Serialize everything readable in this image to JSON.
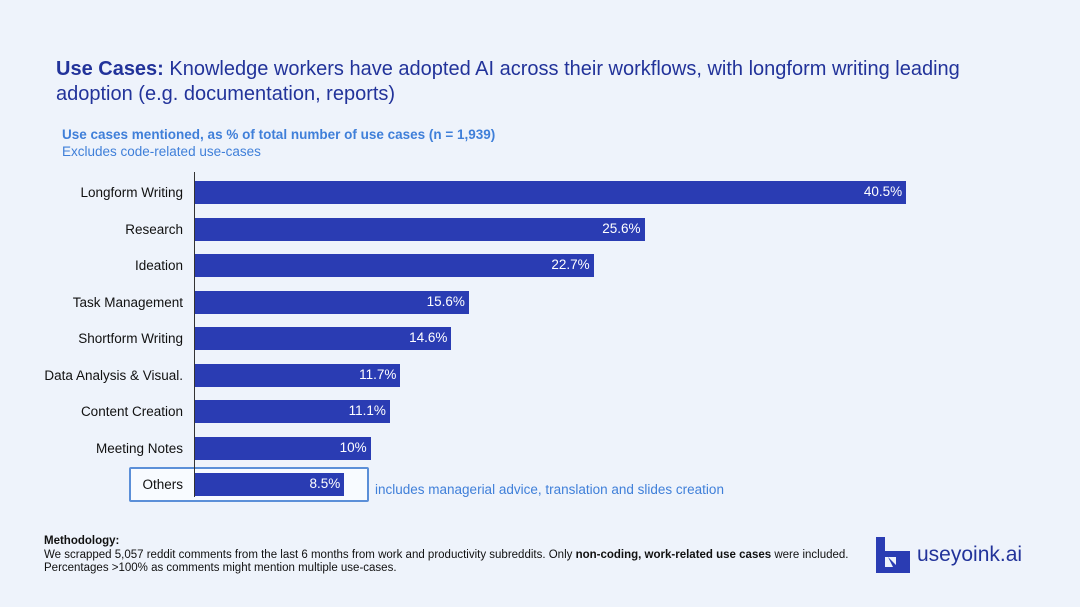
{
  "title": {
    "bold": "Use Cases:",
    "rest": " Knowledge workers have adopted AI across their workflows, with longform writing leading adoption (e.g. documentation, reports)"
  },
  "subtitle": "Use cases mentioned, as % of total number of use cases (n = 1,939)",
  "subtitle2": "Excludes code-related use-cases",
  "chart_data": {
    "type": "bar",
    "orientation": "horizontal",
    "categories": [
      "Longform Writing",
      "Research",
      "Ideation",
      "Task Management",
      "Shortform Writing",
      "Data Analysis & Visual.",
      "Content Creation",
      "Meeting Notes",
      "Others"
    ],
    "values": [
      40.5,
      25.6,
      22.7,
      15.6,
      14.6,
      11.7,
      11.1,
      10,
      8.5
    ],
    "labels": [
      "40.5%",
      "25.6%",
      "22.7%",
      "15.6%",
      "14.6%",
      "11.7%",
      "11.1%",
      "10%",
      "8.5%"
    ],
    "unit": "%",
    "color": "#2a3cb3",
    "annotation": "includes managerial advice, translation and slides creation"
  },
  "methodology": {
    "heading": "Methodology:",
    "line1_a": "We scrapped 5,057 reddit comments from the last 6 months from work and productivity subreddits. Only ",
    "line1_bold": "non-coding, work-related use cases",
    "line1_b": " were included.",
    "line2": "Percentages >100% as comments might mention multiple use-cases."
  },
  "logo": "useyoink.ai"
}
